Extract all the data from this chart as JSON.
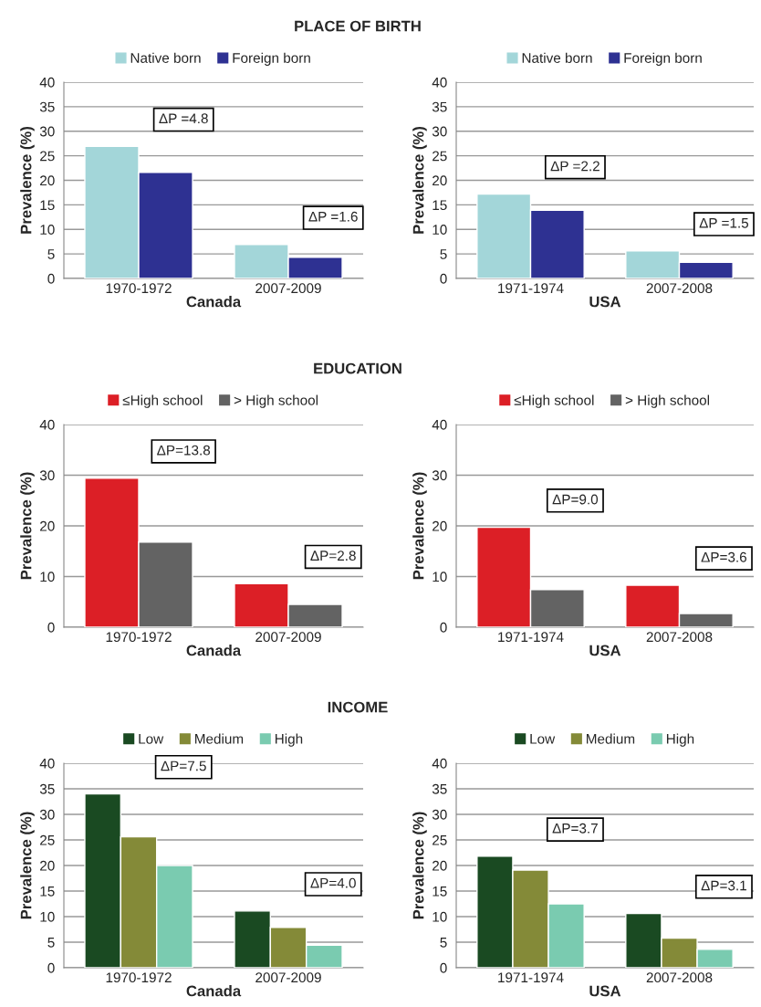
{
  "chart_data": [
    {
      "type": "bar",
      "title": "PLACE OF BIRTH",
      "xlabel": "Canada",
      "ylabel": "Prevalence (%)",
      "categories": [
        "1970-1972",
        "2007-2009"
      ],
      "series": [
        {
          "name": "Native born",
          "color": "#a3d6d9",
          "values": [
            26.9,
            6.9
          ]
        },
        {
          "name": "Foreign born",
          "color": "#2e3192",
          "values": [
            21.6,
            4.3
          ]
        }
      ],
      "ylim": [
        0,
        40
      ],
      "yticks": [
        0,
        5,
        10,
        15,
        20,
        25,
        30,
        35,
        40
      ],
      "grid": "y",
      "legend": "top",
      "annotations": [
        "ΔP =4.8",
        "ΔP =1.6"
      ]
    },
    {
      "type": "bar",
      "xlabel": "USA",
      "ylabel": "Prevalence (%)",
      "categories": [
        "1971-1974",
        "2007-2008"
      ],
      "series": [
        {
          "name": "Native born",
          "color": "#a3d6d9",
          "values": [
            17.2,
            5.6
          ]
        },
        {
          "name": "Foreign born",
          "color": "#2e3192",
          "values": [
            13.9,
            3.3
          ]
        }
      ],
      "ylim": [
        0,
        40
      ],
      "yticks": [
        0,
        5,
        10,
        15,
        20,
        25,
        30,
        35,
        40
      ],
      "grid": "y",
      "legend": "top",
      "annotations": [
        "ΔP =2.2",
        "ΔP =1.5"
      ]
    },
    {
      "type": "bar",
      "title": "EDUCATION",
      "xlabel": "Canada",
      "ylabel": "Prevalence (%)",
      "categories": [
        "1970-1972",
        "2007-2009"
      ],
      "series": [
        {
          "name": "≤High school",
          "color": "#dc1f26",
          "values": [
            29.4,
            8.6
          ]
        },
        {
          "name": "> High school",
          "color": "#636363",
          "values": [
            16.8,
            4.5
          ]
        }
      ],
      "ylim": [
        0,
        40
      ],
      "yticks": [
        0,
        10,
        20,
        30,
        40
      ],
      "grid": "y",
      "legend": "top",
      "annotations": [
        "ΔP=13.8",
        "ΔP=2.8"
      ]
    },
    {
      "type": "bar",
      "xlabel": "USA",
      "ylabel": "Prevalence (%)",
      "categories": [
        "1971-1974",
        "2007-2008"
      ],
      "series": [
        {
          "name": "≤High school",
          "color": "#dc1f26",
          "values": [
            19.7,
            8.3
          ]
        },
        {
          "name": "> High school",
          "color": "#636363",
          "values": [
            7.4,
            2.7
          ]
        }
      ],
      "ylim": [
        0,
        40
      ],
      "yticks": [
        0,
        10,
        20,
        30,
        40
      ],
      "grid": "y",
      "legend": "top",
      "annotations": [
        "ΔP=9.0",
        "ΔP=3.6"
      ]
    },
    {
      "type": "bar",
      "title": "INCOME",
      "xlabel": "Canada",
      "ylabel": "Prevalence (%)",
      "categories": [
        "1970-1972",
        "2007-2009"
      ],
      "series": [
        {
          "name": "Low",
          "color": "#1a4a22",
          "values": [
            34.0,
            11.1
          ]
        },
        {
          "name": "Medium",
          "color": "#848a38",
          "values": [
            25.6,
            7.9
          ]
        },
        {
          "name": "High",
          "color": "#7acbb0",
          "values": [
            20.0,
            4.4
          ]
        }
      ],
      "ylim": [
        0,
        40
      ],
      "yticks": [
        0,
        5,
        10,
        15,
        20,
        25,
        30,
        35,
        40
      ],
      "grid": "y",
      "legend": "top",
      "annotations": [
        "ΔP=7.5",
        "ΔP=4.0"
      ]
    },
    {
      "type": "bar",
      "xlabel": "USA",
      "ylabel": "Prevalence (%)",
      "categories": [
        "1971-1974",
        "2007-2008"
      ],
      "series": [
        {
          "name": "Low",
          "color": "#1a4a22",
          "values": [
            21.8,
            10.6
          ]
        },
        {
          "name": "Medium",
          "color": "#848a38",
          "values": [
            19.1,
            5.8
          ]
        },
        {
          "name": "High",
          "color": "#7acbb0",
          "values": [
            12.5,
            3.6
          ]
        }
      ],
      "ylim": [
        0,
        40
      ],
      "yticks": [
        0,
        5,
        10,
        15,
        20,
        25,
        30,
        35,
        40
      ],
      "grid": "y",
      "legend": "top",
      "annotations": [
        "ΔP=3.7",
        "ΔP=3.1"
      ]
    }
  ]
}
